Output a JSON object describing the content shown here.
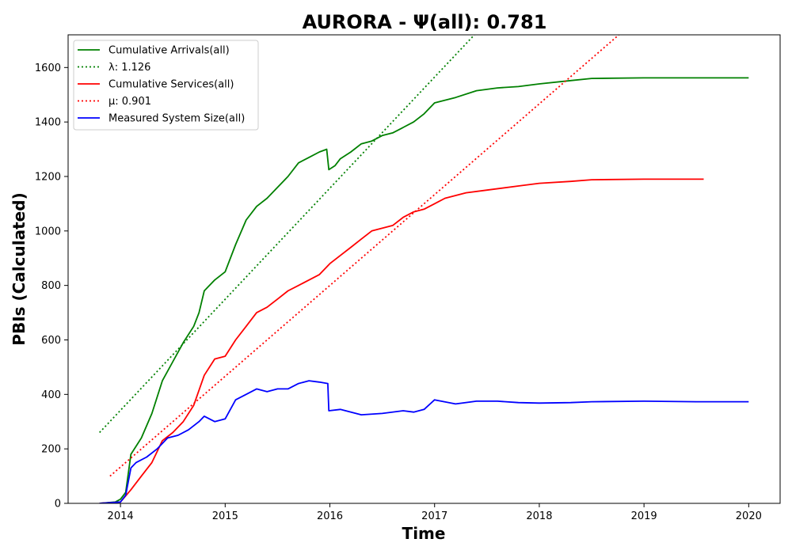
{
  "chart_data": {
    "type": "line",
    "title": "AURORA -  Ψ(all): 0.781",
    "xlabel": "Time",
    "ylabel": "PBIs (Calculated)",
    "xlim": [
      2013.5,
      2020.3
    ],
    "ylim": [
      0,
      1720
    ],
    "x_ticks": [
      2014,
      2015,
      2016,
      2017,
      2018,
      2019,
      2020
    ],
    "x_tick_labels": [
      "2014",
      "2015",
      "2016",
      "2017",
      "2018",
      "2019",
      "2020"
    ],
    "y_ticks": [
      0,
      200,
      400,
      600,
      800,
      1000,
      1200,
      1400,
      1600
    ],
    "y_tick_labels": [
      "0",
      "200",
      "400",
      "600",
      "800",
      "1000",
      "1200",
      "1400",
      "1600"
    ],
    "grid": false,
    "legend_position": "top-left",
    "series": [
      {
        "name": "Cumulative Arrivals(all)",
        "style": "solid",
        "color": "#008000",
        "x": [
          2013.8,
          2013.95,
          2014.0,
          2014.05,
          2014.1,
          2014.2,
          2014.3,
          2014.4,
          2014.5,
          2014.6,
          2014.7,
          2014.75,
          2014.8,
          2014.9,
          2015.0,
          2015.1,
          2015.2,
          2015.3,
          2015.4,
          2015.5,
          2015.6,
          2015.7,
          2015.8,
          2015.9,
          2015.97,
          2015.99,
          2016.05,
          2016.1,
          2016.2,
          2016.3,
          2016.4,
          2016.5,
          2016.6,
          2016.7,
          2016.8,
          2016.9,
          2017.0,
          2017.2,
          2017.4,
          2017.6,
          2017.8,
          2018.0,
          2018.3,
          2018.5,
          2019.0,
          2019.5,
          2020.0
        ],
        "y": [
          0,
          5,
          15,
          40,
          180,
          240,
          330,
          450,
          520,
          590,
          650,
          700,
          780,
          820,
          850,
          950,
          1040,
          1090,
          1120,
          1160,
          1200,
          1250,
          1270,
          1290,
          1300,
          1225,
          1240,
          1265,
          1290,
          1320,
          1330,
          1350,
          1360,
          1380,
          1400,
          1430,
          1470,
          1490,
          1515,
          1525,
          1530,
          1540,
          1552,
          1560,
          1562,
          1562,
          1562
        ]
      },
      {
        "name": "λ: 1.126",
        "style": "dotted",
        "color": "#008000",
        "x": [
          2013.8,
          2017.38
        ],
        "y": [
          260,
          1720
        ]
      },
      {
        "name": "Cumulative Services(all)",
        "style": "solid",
        "color": "#ff0000",
        "x": [
          2013.8,
          2014.0,
          2014.1,
          2014.2,
          2014.3,
          2014.4,
          2014.5,
          2014.6,
          2014.7,
          2014.8,
          2014.9,
          2015.0,
          2015.1,
          2015.2,
          2015.3,
          2015.4,
          2015.5,
          2015.6,
          2015.7,
          2015.8,
          2015.9,
          2016.0,
          2016.1,
          2016.2,
          2016.3,
          2016.4,
          2016.6,
          2016.7,
          2016.8,
          2016.9,
          2017.0,
          2017.1,
          2017.3,
          2017.5,
          2017.8,
          2018.0,
          2018.3,
          2018.5,
          2019.0,
          2019.57
        ],
        "y": [
          0,
          5,
          50,
          100,
          150,
          230,
          260,
          300,
          360,
          470,
          530,
          540,
          600,
          650,
          700,
          720,
          750,
          780,
          800,
          820,
          840,
          880,
          910,
          940,
          970,
          1000,
          1020,
          1050,
          1070,
          1080,
          1100,
          1120,
          1140,
          1150,
          1165,
          1175,
          1182,
          1188,
          1190,
          1190
        ]
      },
      {
        "name": "μ: 0.901",
        "style": "dotted",
        "color": "#ff0000",
        "x": [
          2013.9,
          2018.76
        ],
        "y": [
          100,
          1720
        ]
      },
      {
        "name": "Measured System Size(all)",
        "style": "solid",
        "color": "#0000ff",
        "x": [
          2013.8,
          2014.0,
          2014.05,
          2014.1,
          2014.15,
          2014.25,
          2014.35,
          2014.45,
          2014.55,
          2014.65,
          2014.75,
          2014.8,
          2014.9,
          2015.0,
          2015.1,
          2015.2,
          2015.3,
          2015.4,
          2015.5,
          2015.6,
          2015.7,
          2015.8,
          2015.9,
          2015.98,
          2015.99,
          2016.1,
          2016.3,
          2016.5,
          2016.7,
          2016.8,
          2016.9,
          2017.0,
          2017.2,
          2017.4,
          2017.6,
          2017.8,
          2018.0,
          2018.3,
          2018.5,
          2019.0,
          2019.5,
          2020.0
        ],
        "y": [
          0,
          5,
          30,
          130,
          150,
          170,
          200,
          240,
          250,
          270,
          300,
          320,
          300,
          310,
          380,
          400,
          420,
          410,
          420,
          420,
          440,
          450,
          445,
          440,
          340,
          345,
          325,
          330,
          340,
          335,
          345,
          380,
          365,
          375,
          375,
          370,
          368,
          370,
          373,
          375,
          373,
          373
        ]
      }
    ],
    "legend": [
      {
        "label": "Cumulative Arrivals(all)",
        "style": "solid",
        "color": "#008000"
      },
      {
        "label": "λ: 1.126",
        "style": "dotted",
        "color": "#008000"
      },
      {
        "label": "Cumulative Services(all)",
        "style": "solid",
        "color": "#ff0000"
      },
      {
        "label": "μ: 0.901",
        "style": "dotted",
        "color": "#ff0000"
      },
      {
        "label": "Measured System Size(all)",
        "style": "solid",
        "color": "#0000ff"
      }
    ]
  }
}
